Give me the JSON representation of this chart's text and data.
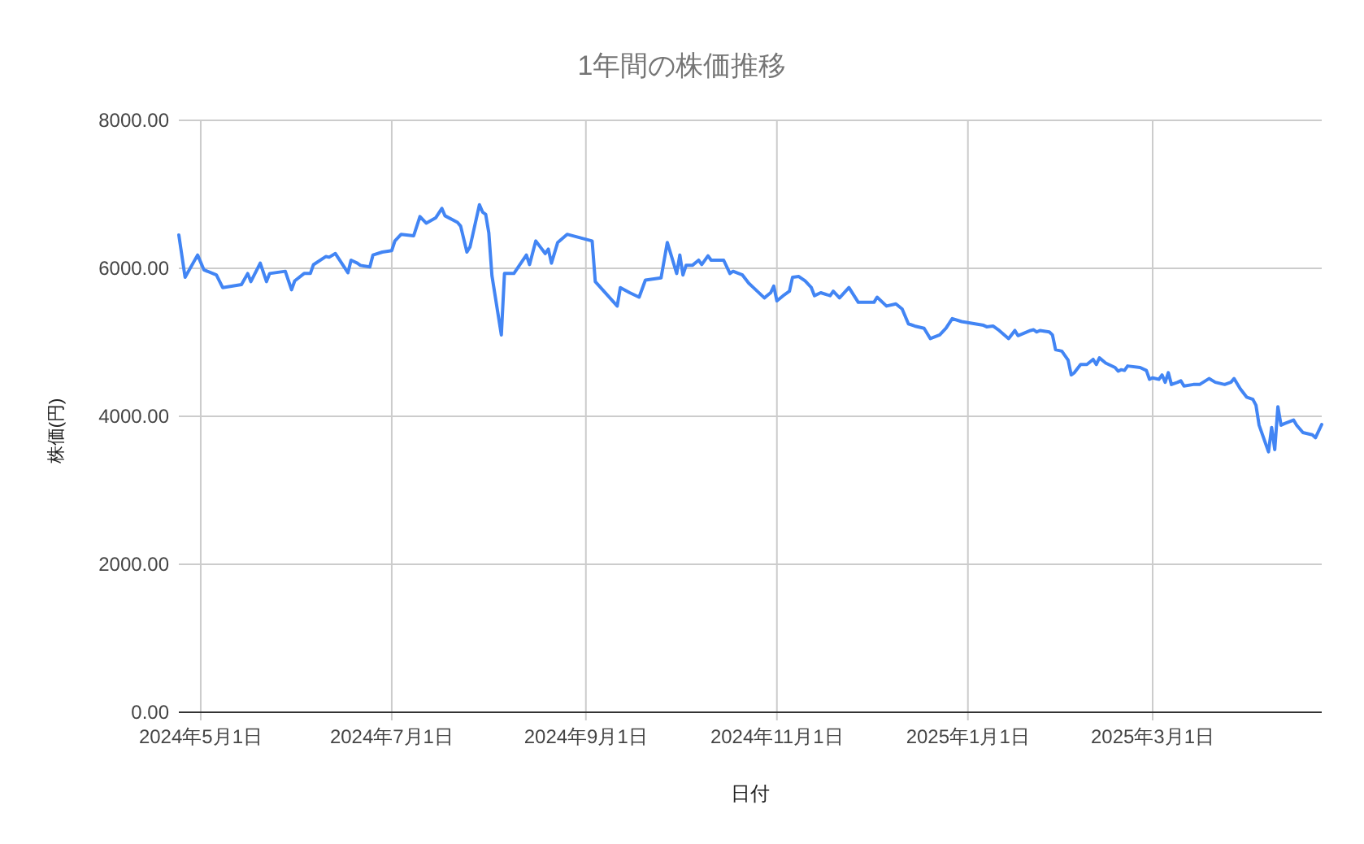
{
  "chart_data": {
    "type": "line",
    "title": "1年間の株価推移",
    "xlabel": "日付",
    "ylabel": "株価(円)",
    "x": [
      "2024-04-24",
      "2024-04-26",
      "2024-04-30",
      "2024-05-02",
      "2024-05-06",
      "2024-05-08",
      "2024-05-14",
      "2024-05-16",
      "2024-05-17",
      "2024-05-20",
      "2024-05-22",
      "2024-05-23",
      "2024-05-28",
      "2024-05-30",
      "2024-05-31",
      "2024-06-03",
      "2024-06-05",
      "2024-06-06",
      "2024-06-10",
      "2024-06-11",
      "2024-06-13",
      "2024-06-17",
      "2024-06-18",
      "2024-06-20",
      "2024-06-21",
      "2024-06-24",
      "2024-06-25",
      "2024-06-28",
      "2024-07-01",
      "2024-07-02",
      "2024-07-04",
      "2024-07-08",
      "2024-07-10",
      "2024-07-12",
      "2024-07-15",
      "2024-07-17",
      "2024-07-18",
      "2024-07-22",
      "2024-07-23",
      "2024-07-25",
      "2024-07-26",
      "2024-07-29",
      "2024-07-30",
      "2024-07-31",
      "2024-08-01",
      "2024-08-02",
      "2024-08-05",
      "2024-08-06",
      "2024-08-09",
      "2024-08-13",
      "2024-08-14",
      "2024-08-16",
      "2024-08-19",
      "2024-08-20",
      "2024-08-21",
      "2024-08-23",
      "2024-08-26",
      "2024-09-03",
      "2024-09-04",
      "2024-09-11",
      "2024-09-12",
      "2024-09-15",
      "2024-09-18",
      "2024-09-20",
      "2024-09-25",
      "2024-09-27",
      "2024-09-30",
      "2024-10-01",
      "2024-10-02",
      "2024-10-03",
      "2024-10-05",
      "2024-10-07",
      "2024-10-08",
      "2024-10-10",
      "2024-10-11",
      "2024-10-15",
      "2024-10-17",
      "2024-10-18",
      "2024-10-21",
      "2024-10-23",
      "2024-10-24",
      "2024-10-28",
      "2024-10-30",
      "2024-10-31",
      "2024-11-01",
      "2024-11-03",
      "2024-11-05",
      "2024-11-06",
      "2024-11-08",
      "2024-11-10",
      "2024-11-12",
      "2024-11-13",
      "2024-11-15",
      "2024-11-18",
      "2024-11-19",
      "2024-11-21",
      "2024-11-24",
      "2024-11-27",
      "2024-12-02",
      "2024-12-03",
      "2024-12-06",
      "2024-12-09",
      "2024-12-11",
      "2024-12-13",
      "2024-12-15",
      "2024-12-18",
      "2024-12-20",
      "2024-12-23",
      "2024-12-25",
      "2024-12-27",
      "2024-12-30",
      "2025-01-06",
      "2025-01-07",
      "2025-01-09",
      "2025-01-11",
      "2025-01-14",
      "2025-01-16",
      "2025-01-17",
      "2025-01-21",
      "2025-01-22",
      "2025-01-23",
      "2025-01-24",
      "2025-01-27",
      "2025-01-28",
      "2025-01-29",
      "2025-01-31",
      "2025-02-02",
      "2025-02-03",
      "2025-02-04",
      "2025-02-06",
      "2025-02-08",
      "2025-02-10",
      "2025-02-11",
      "2025-02-12",
      "2025-02-14",
      "2025-02-17",
      "2025-02-18",
      "2025-02-19",
      "2025-02-20",
      "2025-02-21",
      "2025-02-25",
      "2025-02-27",
      "2025-02-28",
      "2025-03-01",
      "2025-03-03",
      "2025-03-04",
      "2025-03-05",
      "2025-03-06",
      "2025-03-07",
      "2025-03-09",
      "2025-03-10",
      "2025-03-11",
      "2025-03-14",
      "2025-03-16",
      "2025-03-19",
      "2025-03-21",
      "2025-03-24",
      "2025-03-26",
      "2025-03-27",
      "2025-03-29",
      "2025-03-31",
      "2025-04-02",
      "2025-04-03",
      "2025-04-04",
      "2025-04-07",
      "2025-04-08",
      "2025-04-09",
      "2025-04-10",
      "2025-04-11",
      "2025-04-12",
      "2025-04-15",
      "2025-04-16",
      "2025-04-18",
      "2025-04-21",
      "2025-04-22",
      "2025-04-24"
    ],
    "series": [
      {
        "color": "#4285f4",
        "values": [
          6450,
          5880,
          6180,
          5980,
          5910,
          5740,
          5780,
          5930,
          5820,
          6070,
          5820,
          5930,
          5960,
          5710,
          5830,
          5930,
          5930,
          6050,
          6160,
          6150,
          6200,
          5940,
          6110,
          6070,
          6040,
          6020,
          6180,
          6220,
          6240,
          6370,
          6460,
          6440,
          6700,
          6610,
          6680,
          6810,
          6710,
          6620,
          6570,
          6220,
          6290,
          6860,
          6760,
          6730,
          6480,
          5900,
          5100,
          5930,
          5930,
          6180,
          6050,
          6370,
          6200,
          6260,
          6070,
          6350,
          6460,
          6370,
          5820,
          5490,
          5740,
          5670,
          5610,
          5840,
          5870,
          6350,
          5930,
          6180,
          5910,
          6040,
          6040,
          6110,
          6050,
          6170,
          6110,
          6110,
          5930,
          5960,
          5910,
          5800,
          5760,
          5600,
          5670,
          5760,
          5560,
          5630,
          5690,
          5880,
          5890,
          5830,
          5740,
          5630,
          5670,
          5630,
          5690,
          5600,
          5740,
          5540,
          5540,
          5610,
          5490,
          5520,
          5450,
          5250,
          5220,
          5190,
          5050,
          5100,
          5190,
          5320,
          5280,
          5230,
          5210,
          5220,
          5160,
          5050,
          5160,
          5090,
          5160,
          5170,
          5140,
          5160,
          5140,
          5100,
          4900,
          4880,
          4760,
          4560,
          4590,
          4700,
          4700,
          4770,
          4700,
          4790,
          4720,
          4660,
          4610,
          4630,
          4620,
          4680,
          4660,
          4620,
          4500,
          4520,
          4500,
          4560,
          4460,
          4590,
          4430,
          4460,
          4480,
          4410,
          4430,
          4430,
          4510,
          4460,
          4430,
          4460,
          4510,
          4370,
          4260,
          4230,
          4150,
          3880,
          3520,
          3850,
          3550,
          4130,
          3880,
          3900,
          3950,
          3880,
          3780,
          3750,
          3710,
          3890
        ]
      }
    ],
    "xlim": [
      "2024-04-24",
      "2025-04-24"
    ],
    "ylim": [
      0,
      8000
    ],
    "xticks": [
      {
        "value": "2024-05-01",
        "label": "2024年5月1日"
      },
      {
        "value": "2024-07-01",
        "label": "2024年7月1日"
      },
      {
        "value": "2024-09-01",
        "label": "2024年9月1日"
      },
      {
        "value": "2024-11-01",
        "label": "2024年11月1日"
      },
      {
        "value": "2025-01-01",
        "label": "2025年1月1日"
      },
      {
        "value": "2025-03-01",
        "label": "2025年3月1日"
      }
    ],
    "yticks": [
      {
        "value": 0,
        "label": "0.00"
      },
      {
        "value": 2000,
        "label": "2000.00"
      },
      {
        "value": 4000,
        "label": "4000.00"
      },
      {
        "value": 6000,
        "label": "6000.00"
      },
      {
        "value": 8000,
        "label": "8000.00"
      }
    ],
    "grid": true
  }
}
